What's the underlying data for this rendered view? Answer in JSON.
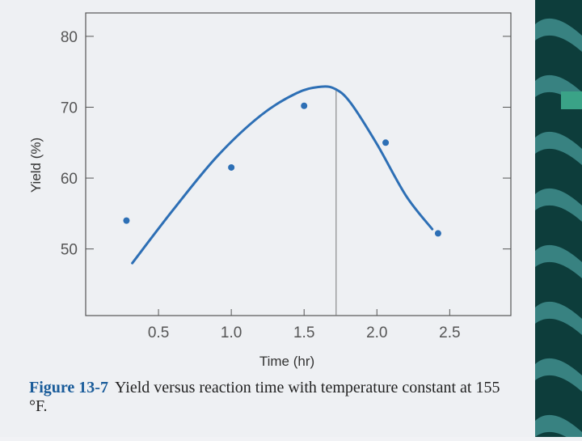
{
  "chart_data": {
    "type": "scatter",
    "xlabel": "Time (hr)",
    "ylabel": "Yield (%)",
    "xlim": [
      0.0,
      2.92
    ],
    "ylim": [
      40.6,
      83.3
    ],
    "xticks": [
      0.5,
      1.0,
      1.5,
      2.0,
      2.5
    ],
    "xtick_labels": [
      "0.5",
      "1.0",
      "1.5",
      "2.0",
      "2.5"
    ],
    "yticks": [
      50,
      60,
      70,
      80
    ],
    "ytick_labels": [
      "50",
      "60",
      "70",
      "80"
    ],
    "grid": false,
    "points": {
      "x": [
        0.28,
        1.0,
        1.5,
        2.06,
        2.42
      ],
      "y": [
        54.0,
        61.5,
        70.2,
        65.0,
        52.2
      ]
    },
    "fit_curve": {
      "x": [
        0.32,
        0.6,
        0.9,
        1.2,
        1.45,
        1.62,
        1.72,
        1.82,
        2.0,
        2.2,
        2.38
      ],
      "y": [
        48.0,
        55.5,
        63.0,
        68.8,
        72.0,
        72.9,
        72.5,
        70.6,
        64.8,
        57.5,
        52.8
      ]
    },
    "vertical_marker_x": 1.72,
    "colors": {
      "data": "#2d6fb5",
      "frame": "#555555",
      "marker_line": "#777777"
    }
  },
  "caption": {
    "label": "Figure 13-7",
    "text": "Yield versus reaction time with temperature constant at 155 °F."
  },
  "decor": {
    "stripe_color": "#0d3d3b",
    "wave_color": "#3d8a8a"
  }
}
